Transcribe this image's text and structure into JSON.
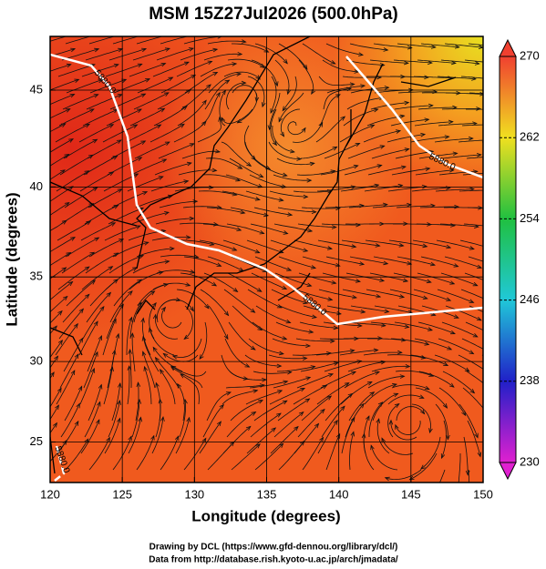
{
  "title": "MSM 15Z27Jul2026 (500.0hPa)",
  "x_axis": {
    "label": "Longitude (degrees)",
    "lim": [
      120,
      150
    ],
    "ticks": [
      120,
      125,
      130,
      135,
      140,
      145,
      150
    ]
  },
  "y_axis": {
    "label": "Latitude  (degrees)",
    "lim": [
      22.4,
      47.6
    ],
    "ticks": [
      25,
      30,
      35,
      40,
      45
    ],
    "projection": "mercator"
  },
  "colorbar": {
    "lim": [
      230,
      270
    ],
    "ticks": [
      230,
      238,
      246,
      254,
      262,
      270
    ]
  },
  "contour_labels": [
    "5880.0",
    "5880.0",
    "5880.0",
    "5880.0"
  ],
  "footer": [
    "Drawing by DCL (https://www.gfd-dennou.org/library/dcl/)",
    "Data from http://database.rish.kyoto-u.ac.jp/arch/jmadata/"
  ]
}
